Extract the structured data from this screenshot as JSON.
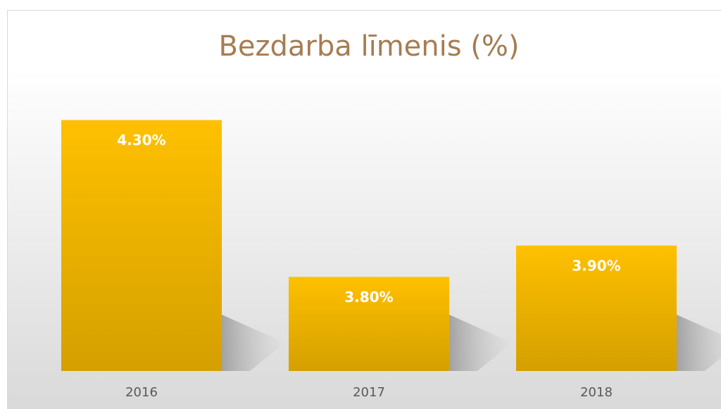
{
  "chart_data": {
    "type": "bar",
    "title": "Bezdarba līmenis (%)",
    "categories": [
      "2016",
      "2017",
      "2018"
    ],
    "values": [
      4.3,
      3.8,
      3.9
    ],
    "value_labels": [
      "4.30%",
      "3.80%",
      "3.90%"
    ],
    "color": "#ffc000",
    "ylim": [
      3.5,
      4.4
    ]
  }
}
